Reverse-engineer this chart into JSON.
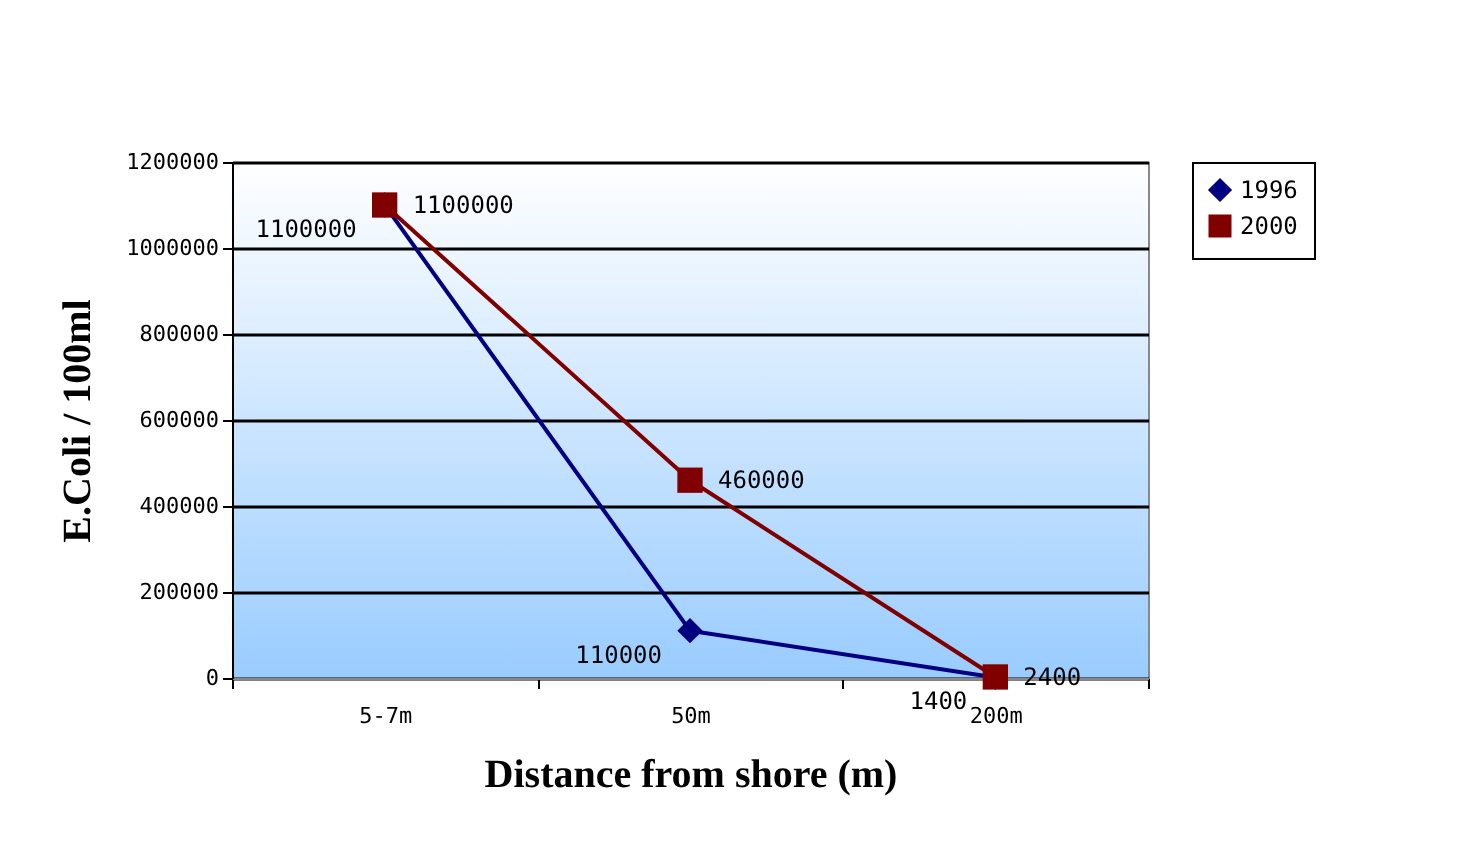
{
  "chart_data": {
    "type": "line",
    "xlabel": "Distance from shore (m)",
    "ylabel": "E.Coli / 100ml",
    "categories": [
      "5-7m",
      "50m",
      "200m"
    ],
    "series": [
      {
        "name": "1996",
        "color": "#000080",
        "marker": "diamond",
        "values": [
          1100000,
          110000,
          1400
        ]
      },
      {
        "name": "2000",
        "color": "#800000",
        "marker": "square",
        "values": [
          1100000,
          460000,
          2400
        ]
      }
    ],
    "ylim": [
      0,
      1200000
    ],
    "yticks": [
      0,
      200000,
      400000,
      600000,
      800000,
      1000000,
      1200000
    ],
    "grid": "y",
    "legend": "right",
    "data_labels": true
  }
}
